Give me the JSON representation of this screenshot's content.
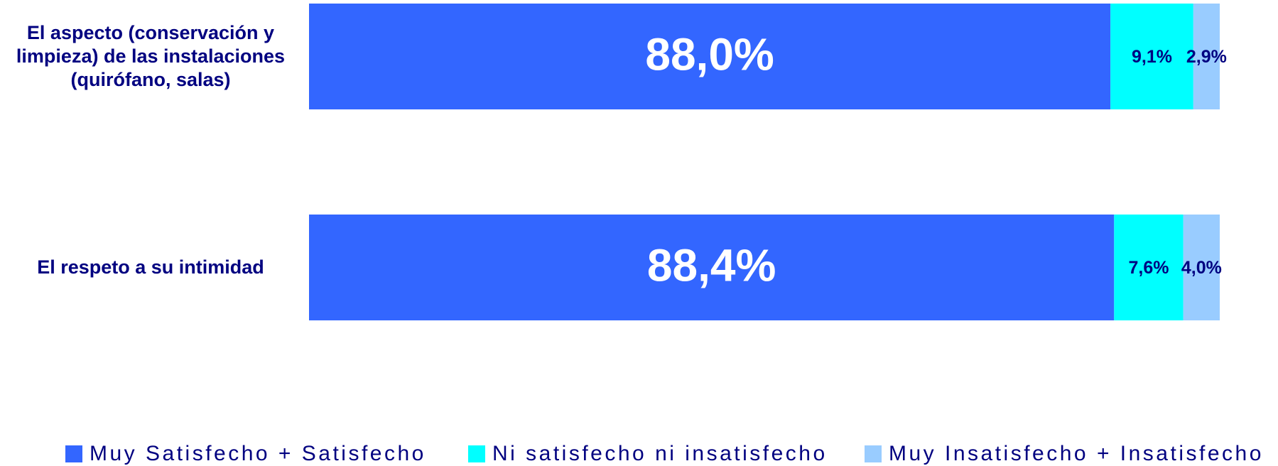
{
  "chart_data": {
    "type": "stacked-barh",
    "categories": [
      "El aspecto (conservación y limpieza) de las instalaciones (quirófano, salas)",
      "El respeto a su intimidad"
    ],
    "series": [
      {
        "name": "Muy Satisfecho + Satisfecho",
        "color": "#3366FF",
        "values": [
          88.0,
          88.4
        ],
        "value_labels": [
          "88,0%",
          "88,4%"
        ]
      },
      {
        "name": "Ni satisfecho ni insatisfecho",
        "color": "#00FFFF",
        "values": [
          9.1,
          7.6
        ],
        "value_labels": [
          "9,1%",
          "7,6%"
        ]
      },
      {
        "name": "Muy Insatisfecho + Insatisfecho",
        "color": "#99CCFF",
        "values": [
          2.9,
          4.0
        ],
        "value_labels": [
          "2,9%",
          "4,0%"
        ]
      }
    ],
    "xlim": [
      0,
      100
    ],
    "legend": "bottom"
  }
}
